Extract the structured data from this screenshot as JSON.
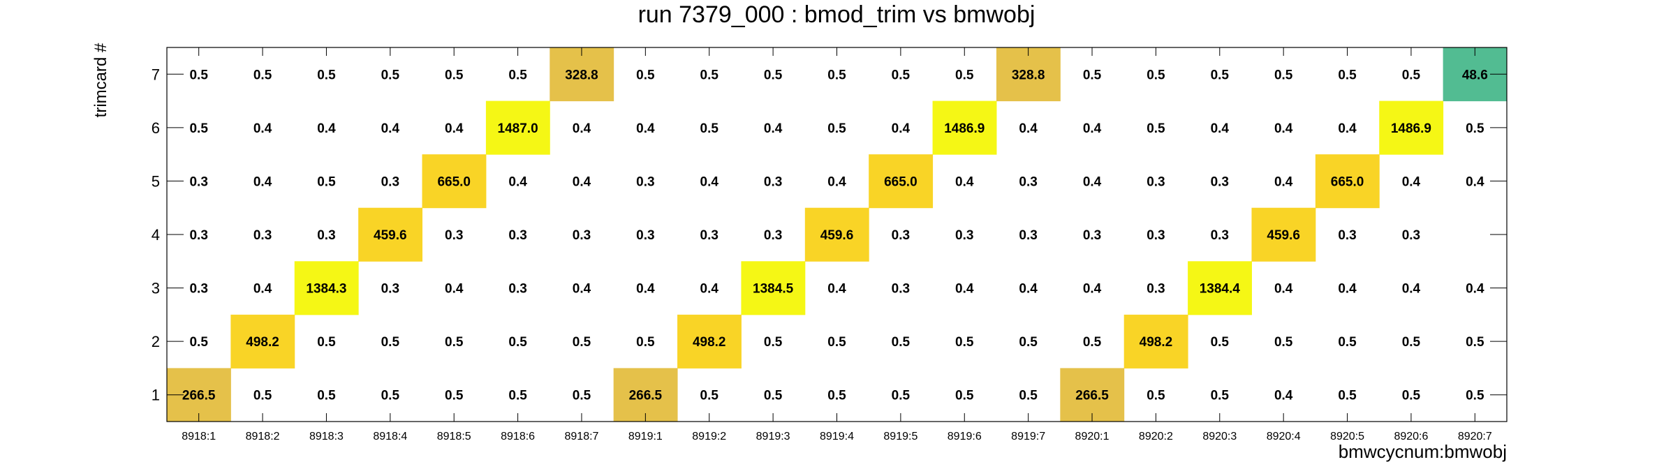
{
  "chart_data": {
    "type": "heatmap",
    "title": "run 7379_000 : bmod_trim vs bmwobj",
    "xlabel": "bmwcycnum:bmwobj",
    "ylabel": "trimcard #",
    "x_categories": [
      "8918:1",
      "8918:2",
      "8918:3",
      "8918:4",
      "8918:5",
      "8918:6",
      "8918:7",
      "8919:1",
      "8919:2",
      "8919:3",
      "8919:4",
      "8919:5",
      "8919:6",
      "8919:7",
      "8920:1",
      "8920:2",
      "8920:3",
      "8920:4",
      "8920:5",
      "8920:6",
      "8920:7"
    ],
    "y_categories": [
      "1",
      "2",
      "3",
      "4",
      "5",
      "6",
      "7"
    ],
    "values": [
      [
        "266.5",
        "0.5",
        "0.5",
        "0.5",
        "0.5",
        "0.5",
        "0.5",
        "266.5",
        "0.5",
        "0.5",
        "0.5",
        "0.5",
        "0.5",
        "0.5",
        "266.5",
        "0.5",
        "0.5",
        "0.4",
        "0.5",
        "0.5",
        "0.5"
      ],
      [
        "0.5",
        "498.2",
        "0.5",
        "0.5",
        "0.5",
        "0.5",
        "0.5",
        "0.5",
        "498.2",
        "0.5",
        "0.5",
        "0.5",
        "0.5",
        "0.5",
        "0.5",
        "498.2",
        "0.5",
        "0.5",
        "0.5",
        "0.5",
        "0.5"
      ],
      [
        "0.3",
        "0.4",
        "1384.3",
        "0.3",
        "0.4",
        "0.3",
        "0.4",
        "0.4",
        "0.4",
        "1384.5",
        "0.4",
        "0.3",
        "0.4",
        "0.4",
        "0.4",
        "0.3",
        "1384.4",
        "0.4",
        "0.4",
        "0.4",
        "0.4"
      ],
      [
        "0.3",
        "0.3",
        "0.3",
        "459.6",
        "0.3",
        "0.3",
        "0.3",
        "0.3",
        "0.3",
        "0.3",
        "459.6",
        "0.3",
        "0.3",
        "0.3",
        "0.3",
        "0.3",
        "0.3",
        "459.6",
        "0.3",
        "0.3",
        ""
      ],
      [
        "0.3",
        "0.4",
        "0.5",
        "0.3",
        "665.0",
        "0.4",
        "0.4",
        "0.3",
        "0.4",
        "0.3",
        "0.4",
        "665.0",
        "0.4",
        "0.3",
        "0.4",
        "0.3",
        "0.3",
        "0.4",
        "665.0",
        "0.4",
        "0.4"
      ],
      [
        "0.5",
        "0.4",
        "0.4",
        "0.4",
        "0.4",
        "1487.0",
        "0.4",
        "0.4",
        "0.5",
        "0.4",
        "0.5",
        "0.4",
        "1486.9",
        "0.4",
        "0.4",
        "0.5",
        "0.4",
        "0.4",
        "0.4",
        "1486.9",
        "0.5"
      ],
      [
        "0.5",
        "0.5",
        "0.5",
        "0.5",
        "0.5",
        "0.5",
        "328.8",
        "0.5",
        "0.5",
        "0.5",
        "0.5",
        "0.5",
        "0.5",
        "328.8",
        "0.5",
        "0.5",
        "0.5",
        "0.5",
        "0.5",
        "0.5",
        "48.6"
      ]
    ],
    "grid": false,
    "colors": {
      "high": "#f5f715",
      "upper": "#f9d426",
      "mid": "#e5c14a",
      "low": "#52bc92",
      "frame": "#000000"
    }
  }
}
